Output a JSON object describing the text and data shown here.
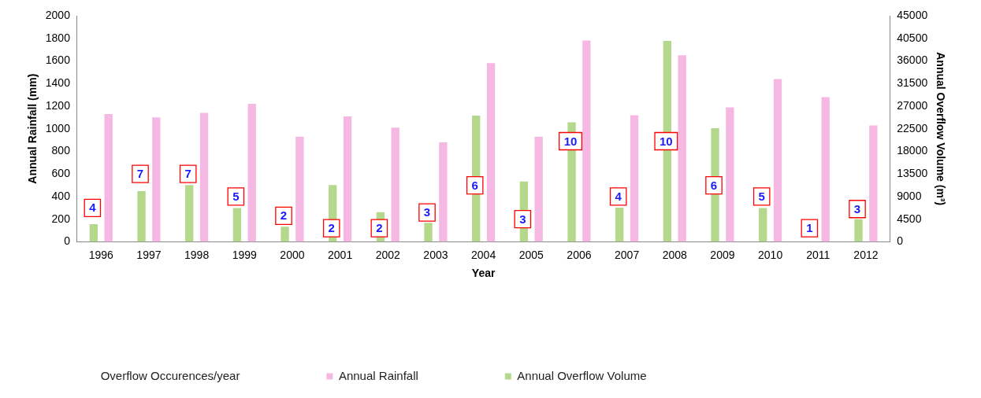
{
  "chart_data": {
    "type": "bar",
    "xlabel": "Year",
    "ylabel": "Annual Rainfall (mm)",
    "y2label": "Annual Overflow Volume (m³)",
    "categories": [
      "1996",
      "1997",
      "1998",
      "1999",
      "2000",
      "2001",
      "2002",
      "2003",
      "2004",
      "2005",
      "2006",
      "2007",
      "2008",
      "2009",
      "2010",
      "2011",
      "2012"
    ],
    "series": [
      {
        "name": "Annual Rainfall",
        "color": "#f5b8e2",
        "values": [
          1130,
          1100,
          1140,
          1220,
          930,
          1110,
          1010,
          880,
          1580,
          930,
          1780,
          1120,
          1650,
          1190,
          1440,
          1280,
          1030
        ]
      },
      {
        "name": "Annual Overflow Volume",
        "color": "#b4d88c",
        "axis": "y2",
        "values": [
          3500,
          10100,
          11300,
          6700,
          3000,
          11300,
          5900,
          3800,
          25100,
          12000,
          23800,
          6800,
          40000,
          22600,
          6700,
          0,
          4500
        ]
      }
    ],
    "ylim": [
      0,
      2000
    ],
    "yticks": [
      0,
      200,
      400,
      600,
      800,
      1000,
      1200,
      1400,
      1600,
      1800,
      2000
    ],
    "y2lim": [
      0,
      45000
    ],
    "y2ticks": [
      0,
      4500,
      9000,
      13500,
      18000,
      22500,
      27000,
      31500,
      36000,
      40500,
      45000
    ],
    "legend_title": "Overflow Occurences/year",
    "annotations": [
      {
        "text": "4",
        "x": "1996",
        "y": 300
      },
      {
        "text": "7",
        "x": "1997",
        "y": 600
      },
      {
        "text": "7",
        "x": "1998",
        "y": 600
      },
      {
        "text": "5",
        "x": "1999",
        "y": 400
      },
      {
        "text": "2",
        "x": "2000",
        "y": 230
      },
      {
        "text": "2",
        "x": "2001",
        "y": 120
      },
      {
        "text": "2",
        "x": "2002",
        "y": 120
      },
      {
        "text": "3",
        "x": "2003",
        "y": 260
      },
      {
        "text": "6",
        "x": "2004",
        "y": 500
      },
      {
        "text": "3",
        "x": "2005",
        "y": 200
      },
      {
        "text": "10",
        "x": "2006",
        "y": 890
      },
      {
        "text": "4",
        "x": "2007",
        "y": 400
      },
      {
        "text": "10",
        "x": "2008",
        "y": 890
      },
      {
        "text": "6",
        "x": "2009",
        "y": 500
      },
      {
        "text": "5",
        "x": "2010",
        "y": 400
      },
      {
        "text": "1",
        "x": "2011",
        "y": 120
      },
      {
        "text": "3",
        "x": "2012",
        "y": 290
      }
    ],
    "tick_labels": "xy",
    "legend": "bottom",
    "grid": false
  }
}
